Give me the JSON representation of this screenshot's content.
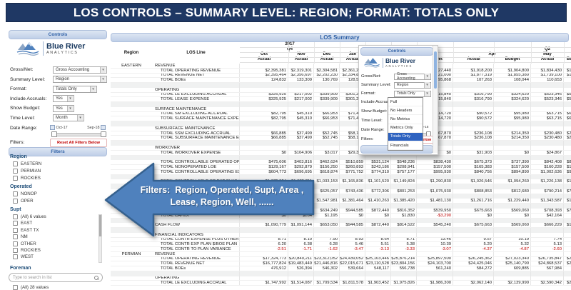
{
  "title": "LOS CONTROLS – SUMMARY LEVEL: REGION; FORMAT: TOTALS ONLY",
  "colors": {
    "title_bg": "#1f3864",
    "bar_bg": "#c6d4ea",
    "bar_text": "#2d5fa5",
    "arrow_blue": "#4f81bd",
    "arrow_border": "#36618e",
    "negative": "#c00000",
    "selected_option_bg": "#2f63c0",
    "logo_blue": "#17375e"
  },
  "logo": {
    "name": "Blue River",
    "sub": "ANALYTICS"
  },
  "sidebar": {
    "controls": {
      "header": "Controls",
      "fields": [
        {
          "label": "Gross/Net:",
          "value": "Gross Accounting"
        },
        {
          "label": "Summary Level:",
          "value": "Region"
        },
        {
          "label": "Format:",
          "value": "Totals Only"
        },
        {
          "label": "Include Accruals:",
          "value": "Yes"
        },
        {
          "label": "Show Budget:",
          "value": "Yes"
        },
        {
          "label": "Time Level:",
          "value": "Month"
        }
      ],
      "date_range_label": "Date Range:",
      "date_range": {
        "start": "Oct-17",
        "end": "Sep-18"
      },
      "filters_label": "Filters:",
      "reset_label": "Reset All Filters Below"
    },
    "filters": {
      "header": "Filters",
      "groups": [
        {
          "label": "Region",
          "items": [
            "EASTERN",
            "PERMIAN",
            "ROCKIES"
          ]
        },
        {
          "label": "Operated",
          "items": [
            "NONOP",
            "OPER"
          ]
        },
        {
          "label": "Supt",
          "items": [
            "(All) 6 values",
            "EAST",
            "EAST TX",
            "NM",
            "OTHER",
            "ROCKIES",
            "WEST"
          ],
          "scrollbar": true
        }
      ],
      "foreman": {
        "label": "Foreman",
        "placeholder": "Type to search in list",
        "partial_item": "(All) 28 values"
      }
    }
  },
  "popup": {
    "header": "Controls",
    "fields": [
      {
        "label": "Gross/Net:",
        "value": "Gross Accounting"
      },
      {
        "label": "Summary Level:",
        "value": "Region"
      },
      {
        "label": "Format:",
        "value": "Totals Only"
      }
    ],
    "extra_labels": [
      "Include Accruals:",
      "Show Budget:",
      "Time Level:",
      "Date Range:",
      "Filters:"
    ],
    "date_end": "Sep-18",
    "reset_label": "Reset All Filters Below",
    "format_options": [
      "Full",
      "No Headers",
      "No Metrics",
      "Metrics Only",
      "Totals Only",
      "Financials"
    ],
    "selected_option": "Totals Only",
    "footer": "Filters"
  },
  "arrow": {
    "line1": "Filters:  Region, Operated, Supt, Area ,",
    "line2": "Lease, Region, Well, ......"
  },
  "table": {
    "title": "LOS Summary",
    "header": {
      "region": "Region",
      "los_line": "LOS Line",
      "year": "2017",
      "q4": "Q4",
      "q2": "Q2",
      "months": [
        "Oct",
        "Nov",
        "Dec",
        "Jan",
        "Feb",
        "Mar"
      ],
      "apr": "Apr",
      "may": "May",
      "actual": "Actual",
      "budget": "Budget"
    },
    "rows": [
      {
        "region": "EASTERN",
        "label": "REVENUE",
        "type": "section",
        "values": []
      },
      {
        "label": "TOTAL OPERATING REVENUE",
        "type": "data",
        "values": [
          "$2,395,381",
          "$2,319,301",
          "$2,304,581",
          "$2,361,254",
          "",
          "",
          "$1,127,440",
          "$1,918,200",
          "$1,904,800",
          "$1,834,430",
          "$1"
        ]
      },
      {
        "label": "TOTAL REVENUE NET",
        "type": "data",
        "values": [
          "$2,395,464",
          "$2,356,697",
          "$2,202,230",
          "$2,334,807",
          "",
          "",
          "$1,621,000",
          "$1,877,319",
          "$1,855,380",
          "$1,739,100",
          "$1"
        ]
      },
      {
        "label": "TOTAL BOEs",
        "type": "data",
        "values": [
          "124,832",
          "133,309",
          "130,769",
          "128,514",
          "",
          "",
          "95,868",
          "107,263",
          "108,044",
          "110,653",
          ""
        ]
      },
      {
        "type": "blank",
        "values": []
      },
      {
        "label": "OPERATING",
        "type": "section",
        "values": []
      },
      {
        "label": "TOTAL LE EXCLUDING ACCRUAL",
        "type": "data",
        "values": [
          "$325,925",
          "$217,002",
          "$339,909",
          "$301,254",
          "",
          "",
          "$315,840",
          "$316,790",
          "$324,620",
          "$523,346",
          "$5"
        ]
      },
      {
        "label": "TOTAL LEASE EXPENSE",
        "type": "data",
        "values": [
          "$325,925",
          "$217,002",
          "$339,909",
          "$301,254",
          "",
          "",
          "$315,840",
          "$316,790",
          "$324,620",
          "$523,346",
          "$5"
        ]
      },
      {
        "type": "blank",
        "values": []
      },
      {
        "label": "SURFACE MAINTENANCE",
        "type": "section",
        "values": []
      },
      {
        "label": "TOTAL SM EXCLUDING ACCRUAL",
        "type": "data",
        "values": [
          "$82,795",
          "$45,310",
          "$66,953",
          "$71,410",
          "",
          "",
          "$114,720",
          "$90,572",
          "$95,980",
          "$63,715",
          "$6"
        ]
      },
      {
        "label": "TOTAL SURFACE MAINTENANCE EXPENSE",
        "type": "data",
        "values": [
          "$82,795",
          "$45,310",
          "$66,953",
          "$71,410",
          "",
          "",
          "$114,720",
          "$90,572",
          "$95,980",
          "$63,715",
          "$6"
        ]
      },
      {
        "type": "blank",
        "values": []
      },
      {
        "label": "SUBSURFACE MAINTENANCE",
        "type": "section",
        "values": []
      },
      {
        "label": "TOTAL SSM EXCLUDING ACCRUAL",
        "type": "data",
        "values": [
          "$66,885",
          "$37,499",
          "$52,745",
          "$58,120",
          "",
          "",
          "$467,870",
          "$236,108",
          "$214,350",
          "$230,480",
          "$2"
        ]
      },
      {
        "label": "TOTAL SUBSURFACE MAINTENANCE EXPENSE",
        "type": "data",
        "values": [
          "$66,885",
          "$37,499",
          "$52,745",
          "$58,120",
          "",
          "",
          "$467,870",
          "$236,108",
          "$214,350",
          "$230,480",
          "$2"
        ]
      },
      {
        "type": "blank",
        "values": []
      },
      {
        "label": "WORKOVER",
        "type": "section",
        "values": []
      },
      {
        "label": "TOTAL WORKOVER EXPENSE",
        "type": "data",
        "values": [
          "$0",
          "$104,906",
          "$3,017",
          "$29,316",
          "$0",
          "$0",
          "$0",
          "$31,903",
          "$0",
          "$24,867",
          ""
        ]
      },
      {
        "type": "blank",
        "values": []
      },
      {
        "label": "TOTAL CONTROLLABLE OPERATED OPEX",
        "type": "data",
        "values": [
          "$475,606",
          "$403,816",
          "$462,624",
          "$510,859",
          "$531,124",
          "$548,236",
          "$838,430",
          "$675,373",
          "$737,390",
          "$842,408",
          "$8"
        ]
      },
      {
        "label": "TOTAL NONOPERATED LOE",
        "type": "data",
        "values": [
          "$129,167",
          "$292,879",
          "$156,250",
          "$260,893",
          "$243,186",
          "$208,941",
          "$157,500",
          "$165,383",
          "$157,500",
          "$160,228",
          "$1"
        ]
      },
      {
        "label": "TOTAL CONTROLLABLE OPERATING EXPENSE",
        "type": "data",
        "values": [
          "$604,773",
          "$696,695",
          "$618,874",
          "$771,752",
          "$774,310",
          "$757,177",
          "$995,930",
          "$840,756",
          "$894,890",
          "$1,002,636",
          "$9"
        ]
      },
      {
        "type": "blank",
        "values": []
      },
      {
        "label": "TOTAL CONTROLLABLE OP EXP PLUS OTHER",
        "type": "data",
        "values": [
          "$1,075,854",
          "$1,075,711",
          "$1,033,153",
          "$1,165,836",
          "$1,101,520",
          "$1,149,824",
          "$1,290,830",
          "$1,026,546",
          "$1,094,260",
          "$1,226,138",
          "$1"
        ]
      },
      {
        "type": "blank",
        "values": []
      },
      {
        "label": "",
        "type": "data",
        "values": [
          "",
          "",
          "$625,057",
          "$743,436",
          "$772,306",
          "$801,253",
          "$1,075,930",
          "$808,853",
          "$812,680",
          "$790,214",
          "$7"
        ]
      },
      {
        "type": "blank",
        "values": []
      },
      {
        "label": "",
        "type": "data",
        "values": [
          "",
          "",
          "$1,547,981",
          "$1,381,464",
          "$1,410,263",
          "$1,385,420",
          "$1,481,130",
          "$1,261,716",
          "$1,229,440",
          "$1,343,587",
          "$1"
        ]
      },
      {
        "type": "blank",
        "values": []
      },
      {
        "label": "",
        "type": "data",
        "values": [
          "",
          "",
          "$634,249",
          "$944,585",
          "$872,440",
          "$816,352",
          "$539,950",
          "$675,663",
          "$569,060",
          "$708,393",
          "$7"
        ]
      },
      {
        "label": "TOTAL CAPEX",
        "type": "data",
        "values": [
          "$0",
          "$264",
          "$1,195",
          "$0",
          "$0",
          "$1,830",
          "-$3,290",
          "$0",
          "$0",
          "$42,164",
          ""
        ]
      },
      {
        "type": "blank",
        "values": []
      },
      {
        "label": "CASH FLOW",
        "type": "section-data",
        "values": [
          "$1,090,779",
          "$1,091,144",
          "$653,050",
          "$944,585",
          "$872,440",
          "$814,522",
          "$545,240",
          "$675,663",
          "$569,060",
          "$666,229",
          "$1"
        ]
      },
      {
        "type": "blank",
        "values": []
      },
      {
        "label": "FINANCIAL INDICATORS",
        "type": "section",
        "values": []
      },
      {
        "label": "TOTAL CONTR EXPENSE PLUS OTHER $/BOE",
        "type": "data",
        "values": [
          "8.71",
          "8.10",
          "7.90",
          "8.93",
          "8.64",
          "8.71",
          "13.46",
          "9.57",
          "10.19",
          "7.74",
          ""
        ]
      },
      {
        "label": "TOTAL CONTR EXP PLAN $/BOE PLAN",
        "type": "data",
        "values": [
          "6.20",
          "6.38",
          "6.28",
          "5.46",
          "5.51",
          "5.38",
          "10.39",
          "5.20",
          "5.32",
          "5.13",
          ""
        ]
      },
      {
        "label": "TOTAL CONTR TO PLAN VARIANCE",
        "type": "data",
        "values": [
          "-2.51",
          "-1.71",
          "-1.62",
          "-3.47",
          "-3.13",
          "-3.33",
          "-3.07",
          "-4.37",
          "-4.87",
          "-2.60",
          ""
        ]
      },
      {
        "region": "PERMIAN",
        "label": "REVENUE",
        "type": "section",
        "values": []
      },
      {
        "label": "TOTAL OPERATING REVENUE",
        "type": "data",
        "values": [
          "$17,324,773",
          "$20,840,211",
          "$23,312,052",
          "$24,439,052",
          "$25,103,446",
          "$25,876,214",
          "$25,897,500",
          "$26,245,362",
          "$27,023,340",
          "$26,735,847",
          "$26"
        ]
      },
      {
        "label": "TOTAL REVENUE NET",
        "type": "data",
        "values": [
          "$16,777,824",
          "$19,483,449",
          "$21,446,816",
          "$22,015,671",
          "$23,110,528",
          "$23,804,156",
          "$24,103,700",
          "$24,425,046",
          "$25,140,790",
          "$24,868,537",
          "$24"
        ]
      },
      {
        "label": "TOTAL BOEs",
        "type": "data",
        "values": [
          "476,912",
          "526,394",
          "546,302",
          "539,664",
          "548,117",
          "556,738",
          "561,240",
          "584,272",
          "609,885",
          "567,984",
          ""
        ]
      },
      {
        "type": "blank",
        "values": []
      },
      {
        "label": "OPERATING",
        "type": "section",
        "values": []
      },
      {
        "label": "TOTAL LE EXCLUDING ACCRUAL",
        "type": "data",
        "values": [
          "$1,747,992",
          "$1,514,087",
          "$1,709,534",
          "$1,811,578",
          "$1,903,452",
          "$1,975,826",
          "$1,986,300",
          "$2,062,140",
          "$2,139,990",
          "$2,590,342",
          "$2"
        ]
      }
    ]
  }
}
